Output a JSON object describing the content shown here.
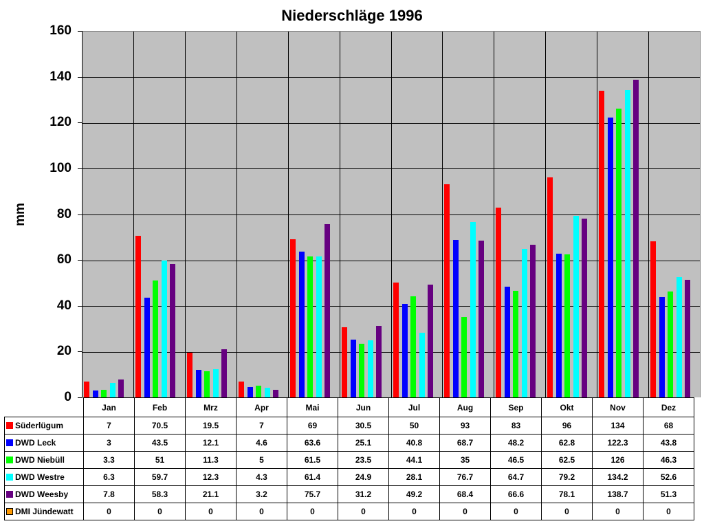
{
  "chart_data": {
    "type": "bar",
    "title": "Niederschläge 1996",
    "xlabel": "",
    "ylabel": "mm",
    "ylim": [
      0,
      160
    ],
    "yticks": [
      0,
      20,
      40,
      60,
      80,
      100,
      120,
      140,
      160
    ],
    "grid": true,
    "legend_position": "data-table",
    "categories": [
      "Jan",
      "Feb",
      "Mrz",
      "Apr",
      "Mai",
      "Jun",
      "Jul",
      "Aug",
      "Sep",
      "Okt",
      "Nov",
      "Dez"
    ],
    "series": [
      {
        "name": "Süderlügum",
        "color": "#ff0000",
        "values": [
          7,
          70.5,
          19.5,
          7,
          69,
          30.5,
          50,
          93,
          83,
          96,
          134,
          68
        ]
      },
      {
        "name": "DWD Leck",
        "color": "#0000ff",
        "values": [
          3,
          43.5,
          12.1,
          4.6,
          63.6,
          25.1,
          40.8,
          68.7,
          48.2,
          62.8,
          122.3,
          43.8
        ]
      },
      {
        "name": "DWD Niebüll",
        "color": "#00ff00",
        "values": [
          3.3,
          51,
          11.3,
          5,
          61.5,
          23.5,
          44.1,
          35,
          46.5,
          62.5,
          126,
          46.3
        ]
      },
      {
        "name": "DWD Westre",
        "color": "#00ffff",
        "values": [
          6.3,
          59.7,
          12.3,
          4.3,
          61.4,
          24.9,
          28.1,
          76.7,
          64.7,
          79.2,
          134.2,
          52.6
        ]
      },
      {
        "name": "DWD Weesby",
        "color": "#660080",
        "values": [
          7.8,
          58.3,
          21.1,
          3.2,
          75.7,
          31.2,
          49.2,
          68.4,
          66.6,
          78.1,
          138.7,
          51.3
        ]
      },
      {
        "name": "DMI Jündewatt",
        "color": "#ff9900",
        "values": [
          0,
          0,
          0,
          0,
          0,
          0,
          0,
          0,
          0,
          0,
          0,
          0
        ]
      }
    ]
  }
}
